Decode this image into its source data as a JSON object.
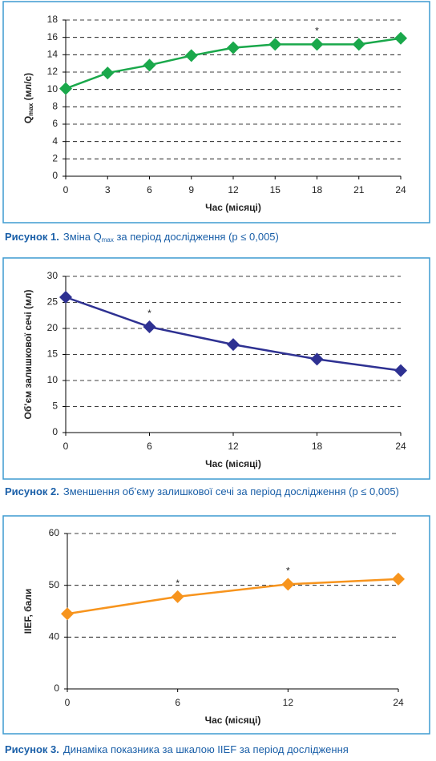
{
  "chart_data": [
    {
      "type": "line",
      "ylabel": [
        "Q",
        "max",
        " (мл/с)"
      ],
      "xlabel": "Час (місяці)",
      "x": [
        0,
        3,
        6,
        9,
        12,
        15,
        18,
        21,
        24
      ],
      "xlim": [
        0,
        24
      ],
      "xticks": [
        0,
        3,
        6,
        9,
        12,
        15,
        18,
        21,
        24
      ],
      "ylim": [
        0,
        18
      ],
      "yticks": [
        0,
        2,
        4,
        6,
        8,
        10,
        12,
        14,
        16,
        18
      ],
      "grid": true,
      "series": [
        {
          "color": "#1aa84b",
          "values": [
            10.1,
            11.9,
            12.8,
            13.9,
            14.8,
            15.2,
            15.2,
            15.2,
            15.9
          ]
        }
      ],
      "annotations": [
        {
          "text": "*",
          "x": 18
        }
      ],
      "caption": {
        "label": "Рисунок 1.",
        "parts": [
          "Зміна Q",
          "max",
          " за період дослідження (p ≤ 0,005)"
        ]
      }
    },
    {
      "type": "line",
      "ylabel": [
        "Об’єм залишкової сечі (мл)"
      ],
      "xlabel": "Час (місяці)",
      "x": [
        0,
        6,
        12,
        18,
        24
      ],
      "xlim": [
        0,
        24
      ],
      "xticks": [
        0,
        6,
        12,
        18,
        24
      ],
      "ylim": [
        0,
        30
      ],
      "yticks": [
        0,
        5,
        10,
        15,
        20,
        25,
        30
      ],
      "grid": true,
      "series": [
        {
          "color": "#2e3192",
          "values": [
            26,
            20.3,
            16.9,
            14.1,
            11.9
          ]
        }
      ],
      "annotations": [
        {
          "text": "*",
          "x": 6
        }
      ],
      "caption": {
        "label": "Рисунок 2.",
        "parts": [
          "Зменшення об’єму залишкової сечі за період дослідження (p ≤ 0,005)"
        ]
      }
    },
    {
      "type": "line",
      "ylabel": [
        "IIEF, бали"
      ],
      "xlabel": "Час (місяці)",
      "categories": [
        "0",
        "6",
        "12",
        "24"
      ],
      "ylim": [
        0,
        60
      ],
      "yticks": [
        0,
        40,
        50,
        60
      ],
      "grid": true,
      "series": [
        {
          "color": "#f7941d",
          "values": [
            44.5,
            47.8,
            50.2,
            51.2
          ]
        }
      ],
      "annotations": [
        {
          "text": "*",
          "x": "6"
        },
        {
          "text": "*",
          "x": "12"
        }
      ],
      "caption": {
        "label": "Рисунок 3.",
        "parts": [
          "Динаміка показника за шкалою IIEF за період дослідження"
        ]
      }
    }
  ]
}
